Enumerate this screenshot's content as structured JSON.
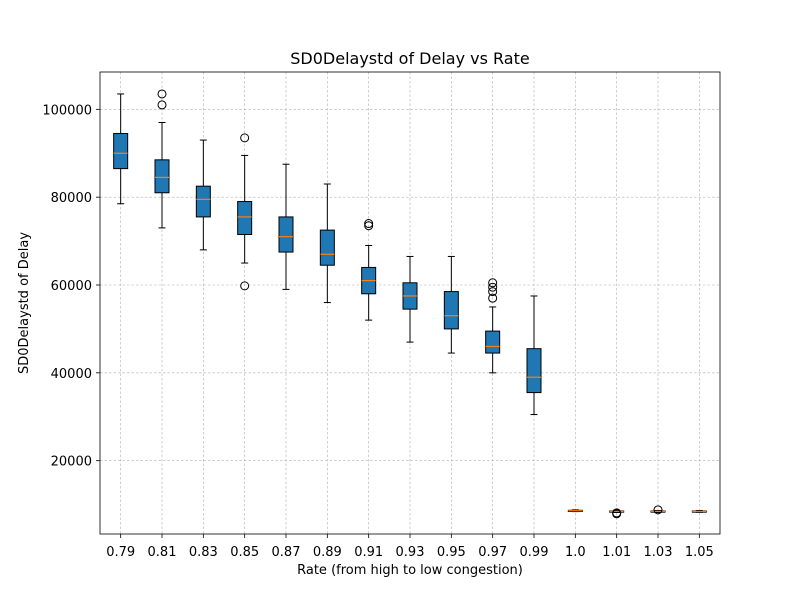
{
  "chart_data": {
    "type": "boxplot",
    "title": "SD0Delaystd of Delay vs Rate",
    "xlabel": "Rate (from high to low congestion)",
    "ylabel": "SD0Delaystd of Delay",
    "ylim": [
      3300,
      108500
    ],
    "yticks": [
      20000,
      40000,
      60000,
      80000,
      100000
    ],
    "grid": true,
    "colors": {
      "box_fill": "#1f77b4",
      "median": "#ff7f0e",
      "grid": "#b0b0b0",
      "edge": "#000000"
    },
    "boxes": [
      {
        "label": "0.79",
        "whislo": 78500,
        "q1": 86500,
        "med": 90000,
        "q3": 94500,
        "whishi": 103500,
        "fliers": []
      },
      {
        "label": "0.81",
        "whislo": 73000,
        "q1": 81000,
        "med": 84500,
        "q3": 88500,
        "whishi": 97000,
        "fliers": [
          101000,
          103500
        ]
      },
      {
        "label": "0.83",
        "whislo": 68000,
        "q1": 75500,
        "med": 79500,
        "q3": 82500,
        "whishi": 93000,
        "fliers": []
      },
      {
        "label": "0.85",
        "whislo": 65000,
        "q1": 71500,
        "med": 75500,
        "q3": 79000,
        "whishi": 89500,
        "fliers": [
          93500,
          59800
        ]
      },
      {
        "label": "0.87",
        "whislo": 59000,
        "q1": 67500,
        "med": 71000,
        "q3": 75500,
        "whishi": 87500,
        "fliers": []
      },
      {
        "label": "0.89",
        "whislo": 56000,
        "q1": 64500,
        "med": 67000,
        "q3": 72500,
        "whishi": 83000,
        "fliers": []
      },
      {
        "label": "0.91",
        "whislo": 52000,
        "q1": 58000,
        "med": 61000,
        "q3": 64000,
        "whishi": 69000,
        "fliers": [
          73500,
          74000
        ]
      },
      {
        "label": "0.93",
        "whislo": 47000,
        "q1": 54500,
        "med": 57500,
        "q3": 60500,
        "whishi": 66500,
        "fliers": []
      },
      {
        "label": "0.95",
        "whislo": 44500,
        "q1": 50000,
        "med": 53000,
        "q3": 58500,
        "whishi": 66500,
        "fliers": []
      },
      {
        "label": "0.97",
        "whislo": 40000,
        "q1": 44500,
        "med": 46000,
        "q3": 49500,
        "whishi": 55000,
        "fliers": [
          57000,
          58500,
          59500,
          60500
        ]
      },
      {
        "label": "0.99",
        "whislo": 30500,
        "q1": 35500,
        "med": 39000,
        "q3": 45500,
        "whishi": 57500,
        "fliers": []
      },
      {
        "label": "1.0",
        "whislo": 8400,
        "q1": 8500,
        "med": 8600,
        "q3": 8700,
        "whishi": 8800,
        "fliers": []
      },
      {
        "label": "1.01",
        "whislo": 8200,
        "q1": 8350,
        "med": 8450,
        "q3": 8550,
        "whishi": 8700,
        "fliers": [
          8100,
          7900
        ]
      },
      {
        "label": "1.03",
        "whislo": 8200,
        "q1": 8350,
        "med": 8450,
        "q3": 8550,
        "whishi": 8650,
        "fliers": [
          8800
        ]
      },
      {
        "label": "1.05",
        "whislo": 8250,
        "q1": 8350,
        "med": 8450,
        "q3": 8550,
        "whishi": 8650,
        "fliers": []
      }
    ]
  }
}
